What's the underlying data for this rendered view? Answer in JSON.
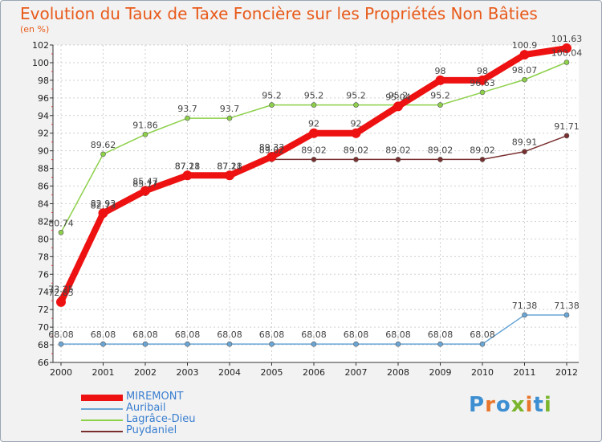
{
  "title": "Evolution du Taux de Taxe Foncière sur les Propriétés Non Bâties",
  "unit_label": "(en %)",
  "logo": {
    "text": "Proxiti",
    "colors": [
      "#3d8fd1",
      "#e8762c",
      "#3d8fd1",
      "#7ab52c",
      "#e8762c",
      "#3d8fd1",
      "#7ab52c"
    ]
  },
  "chart_data": {
    "type": "line",
    "title": "Evolution du Taux de Taxe Foncière sur les Propriétés Non Bâties",
    "ylabel": "(en %)",
    "xlabel": "",
    "ylim": [
      66,
      102
    ],
    "yticks": [
      66,
      68,
      70,
      72,
      74,
      76,
      78,
      80,
      82,
      84,
      86,
      88,
      90,
      92,
      94,
      96,
      98,
      100,
      102
    ],
    "grid": true,
    "legend_position": "bottom-left",
    "categories": [
      "2000",
      "2001",
      "2002",
      "2003",
      "2004",
      "2005",
      "2006",
      "2007",
      "2008",
      "2009",
      "2010",
      "2011",
      "2012"
    ],
    "series": [
      {
        "name": "MIREMONT",
        "color": "#ee1111",
        "values": [
          72.85,
          82.93,
          85.47,
          87.21,
          87.21,
          89.33,
          92,
          92,
          95.04,
          98,
          98,
          100.9,
          101.63
        ],
        "labels": [
          "72.85",
          "82.93",
          "85.47",
          "87.21",
          "87.21",
          "89.33",
          "92",
          "92",
          "95.04",
          "98",
          "98",
          "100.9",
          "101.63"
        ]
      },
      {
        "name": "Auribail",
        "color": "#6aa6d6",
        "values": [
          68.08,
          68.08,
          68.08,
          68.08,
          68.08,
          68.08,
          68.08,
          68.08,
          68.08,
          68.08,
          68.08,
          71.38,
          71.38
        ],
        "labels": [
          "68.08",
          "68.08",
          "68.08",
          "68.08",
          "68.08",
          "68.08",
          "68.08",
          "68.08",
          "68.08",
          "68.08",
          "68.08",
          "71.38",
          "71.38"
        ]
      },
      {
        "name": "Lagrâce-Dieu",
        "color": "#8dd04a",
        "values": [
          80.74,
          89.62,
          91.86,
          93.7,
          93.7,
          95.2,
          95.2,
          95.2,
          95.2,
          95.2,
          96.63,
          98.07,
          100.04
        ],
        "labels": [
          "80.74",
          "89.62",
          "91.86",
          "93.7",
          "93.7",
          "95.2",
          "95.2",
          "95.2",
          "95.2",
          "95.2",
          "96.63",
          "98.07",
          "100.04"
        ]
      },
      {
        "name": "Puydaniel",
        "color": "#7a2f2f",
        "values": [
          73.25,
          82.73,
          85.17,
          87.18,
          87.18,
          89.02,
          89.02,
          89.02,
          89.02,
          89.02,
          89.02,
          89.91,
          91.71
        ],
        "labels": [
          "73.25",
          "82.73",
          "85.17",
          "87.18",
          "87.18",
          "89.02",
          "89.02",
          "89.02",
          "89.02",
          "89.02",
          "89.02",
          "89.91",
          "91.71"
        ]
      }
    ]
  }
}
